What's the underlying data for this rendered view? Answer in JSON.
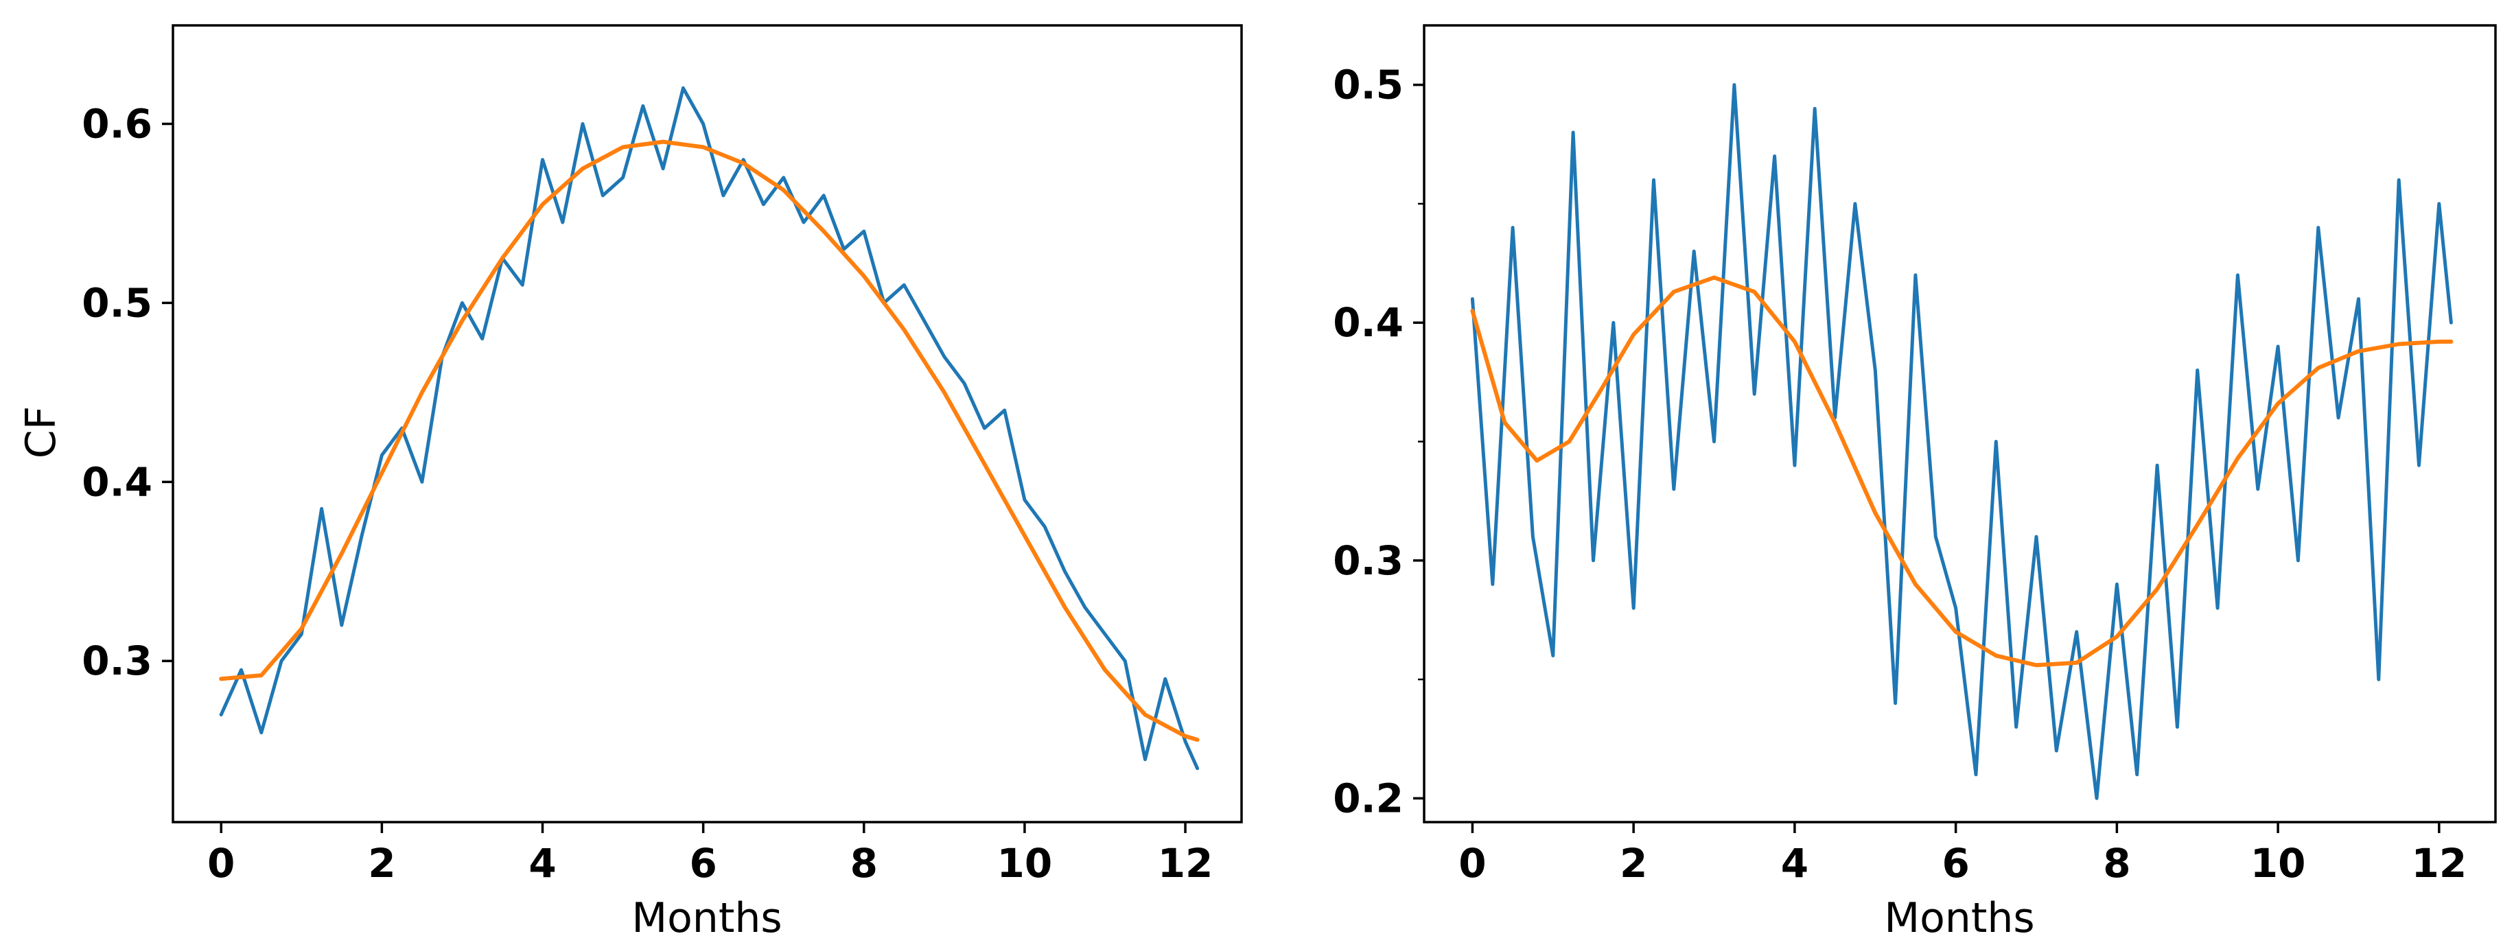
{
  "chart_data": [
    {
      "type": "line",
      "title": "",
      "xlabel": "Months",
      "ylabel": "CF",
      "xlim": [
        -0.6,
        12.7
      ],
      "ylim": [
        0.21,
        0.655
      ],
      "xticks": [
        0,
        2,
        4,
        6,
        8,
        10,
        12
      ],
      "xtick_labels": [
        "0",
        "2",
        "4",
        "6",
        "8",
        "10",
        "12"
      ],
      "yticks": [
        0.3,
        0.4,
        0.5,
        0.6
      ],
      "ytick_labels": [
        "0.3",
        "0.4",
        "0.5",
        "0.6"
      ],
      "yminor_ticks": [],
      "grid": false,
      "legend": "none",
      "series": [
        {
          "color": "#1f77b4",
          "x": [
            0,
            0.25,
            0.5,
            0.75,
            1,
            1.25,
            1.5,
            1.75,
            2,
            2.25,
            2.5,
            2.75,
            3,
            3.25,
            3.5,
            3.75,
            4,
            4.25,
            4.5,
            4.75,
            5,
            5.25,
            5.5,
            5.75,
            6,
            6.25,
            6.5,
            6.75,
            7,
            7.25,
            7.5,
            7.75,
            8,
            8.25,
            8.5,
            8.75,
            9,
            9.25,
            9.5,
            9.75,
            10,
            10.25,
            10.5,
            10.75,
            11,
            11.25,
            11.5,
            11.75,
            12,
            12.15
          ],
          "y": [
            0.27,
            0.295,
            0.26,
            0.3,
            0.315,
            0.385,
            0.32,
            0.37,
            0.415,
            0.43,
            0.4,
            0.47,
            0.5,
            0.48,
            0.525,
            0.51,
            0.58,
            0.545,
            0.6,
            0.56,
            0.57,
            0.61,
            0.575,
            0.62,
            0.6,
            0.56,
            0.58,
            0.555,
            0.57,
            0.545,
            0.56,
            0.53,
            0.54,
            0.5,
            0.51,
            0.49,
            0.47,
            0.455,
            0.43,
            0.44,
            0.39,
            0.375,
            0.35,
            0.33,
            0.315,
            0.3,
            0.245,
            0.29,
            0.255,
            0.24
          ]
        },
        {
          "color": "#ff7f0e",
          "x": [
            0,
            0.5,
            1,
            1.5,
            2,
            2.5,
            3,
            3.5,
            4,
            4.5,
            5,
            5.5,
            6,
            6.5,
            7,
            7.5,
            8,
            8.5,
            9,
            9.5,
            10,
            10.5,
            11,
            11.5,
            12,
            12.15
          ],
          "y": [
            0.29,
            0.292,
            0.318,
            0.36,
            0.405,
            0.45,
            0.49,
            0.525,
            0.555,
            0.575,
            0.587,
            0.59,
            0.587,
            0.578,
            0.563,
            0.54,
            0.515,
            0.485,
            0.45,
            0.41,
            0.37,
            0.33,
            0.295,
            0.27,
            0.258,
            0.256
          ]
        }
      ]
    },
    {
      "type": "line",
      "title": "",
      "xlabel": "Months",
      "ylabel": "",
      "xlim": [
        -0.6,
        12.7
      ],
      "ylim": [
        0.19,
        0.525
      ],
      "xticks": [
        0,
        2,
        4,
        6,
        8,
        10,
        12
      ],
      "xtick_labels": [
        "0",
        "2",
        "4",
        "6",
        "8",
        "10",
        "12"
      ],
      "yticks": [
        0.2,
        0.3,
        0.4,
        0.5
      ],
      "ytick_labels": [
        "0.2",
        "0.3",
        "0.4",
        "0.5"
      ],
      "yminor_ticks": [
        0.25,
        0.35,
        0.45
      ],
      "grid": false,
      "legend": "none",
      "series": [
        {
          "color": "#1f77b4",
          "x": [
            0,
            0.25,
            0.5,
            0.75,
            1,
            1.25,
            1.5,
            1.75,
            2,
            2.25,
            2.5,
            2.75,
            3,
            3.25,
            3.5,
            3.75,
            4,
            4.25,
            4.5,
            4.75,
            5,
            5.25,
            5.5,
            5.75,
            6,
            6.25,
            6.5,
            6.75,
            7,
            7.25,
            7.5,
            7.75,
            8,
            8.25,
            8.5,
            8.75,
            9,
            9.25,
            9.5,
            9.75,
            10,
            10.25,
            10.5,
            10.75,
            11,
            11.25,
            11.5,
            11.75,
            12,
            12.15
          ],
          "y": [
            0.41,
            0.29,
            0.44,
            0.31,
            0.26,
            0.48,
            0.3,
            0.4,
            0.28,
            0.46,
            0.33,
            0.43,
            0.35,
            0.5,
            0.37,
            0.47,
            0.34,
            0.49,
            0.36,
            0.45,
            0.38,
            0.24,
            0.42,
            0.31,
            0.28,
            0.21,
            0.35,
            0.23,
            0.31,
            0.22,
            0.27,
            0.2,
            0.29,
            0.21,
            0.34,
            0.23,
            0.38,
            0.28,
            0.42,
            0.33,
            0.39,
            0.3,
            0.44,
            0.36,
            0.41,
            0.25,
            0.46,
            0.34,
            0.45,
            0.4
          ]
        },
        {
          "color": "#ff7f0e",
          "x": [
            0,
            0.4,
            0.8,
            1.2,
            1.6,
            2,
            2.5,
            3,
            3.5,
            4,
            4.5,
            5,
            5.5,
            6,
            6.5,
            7,
            7.5,
            8,
            8.5,
            9,
            9.5,
            10,
            10.5,
            11,
            11.5,
            12,
            12.15
          ],
          "y": [
            0.405,
            0.358,
            0.342,
            0.35,
            0.372,
            0.395,
            0.413,
            0.419,
            0.413,
            0.392,
            0.358,
            0.32,
            0.29,
            0.27,
            0.26,
            0.256,
            0.257,
            0.268,
            0.288,
            0.315,
            0.343,
            0.366,
            0.381,
            0.388,
            0.391,
            0.392,
            0.392
          ]
        }
      ]
    }
  ]
}
